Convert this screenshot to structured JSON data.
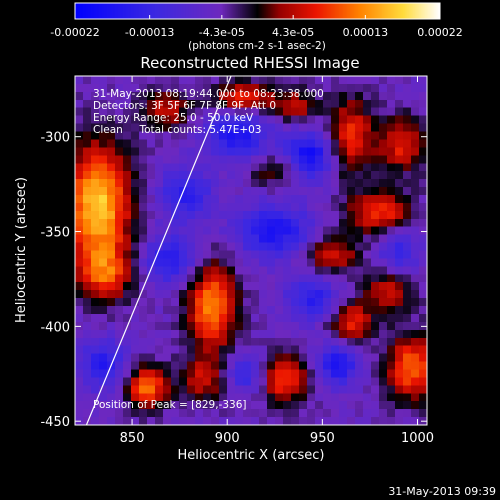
{
  "chart_data": {
    "type": "heatmap",
    "title": "Reconstructed RHESSI Image",
    "xlabel": "Heliocentric X (arcsec)",
    "ylabel": "Heliocentric Y (arcsec)",
    "xlim": [
      820,
      1005
    ],
    "ylim": [
      -452,
      -268
    ],
    "x_ticks": [
      850,
      900,
      950,
      1000
    ],
    "y_ticks": [
      -300,
      -350,
      -400,
      -450
    ],
    "colorbar": {
      "ticks": [
        "-0.00022",
        "-0.00013",
        "-4.3e-05",
        "4.3e-05",
        "0.00013",
        "0.00022"
      ],
      "tick_values": [
        -0.00022,
        -0.00013,
        -4.3e-05,
        4.3e-05,
        0.00013,
        0.00022
      ],
      "range": [
        -0.00022,
        0.00022
      ],
      "unit_label": "(photons cm-2 s-1 asec-2)"
    },
    "annotations": [
      "31-May-2013 08:19:44.000 to 08:23:38.000",
      "Detectors: 3F 5F 6F 7F 8F 9F, Att 0",
      "Energy Range: 25.0 - 50.0 keV",
      "Clean     Total counts: 5.47E+03"
    ],
    "peak_label": "Position of Peak = [829,-336]",
    "limb_line": [
      [
        826,
        -452
      ],
      [
        902,
        -268
      ]
    ],
    "hotspots": [
      {
        "x": 832,
        "y": -336,
        "amp": 0.00022,
        "sx": 12,
        "sy": 22
      },
      {
        "x": 836,
        "y": -372,
        "amp": 0.00012,
        "sx": 10,
        "sy": 10
      },
      {
        "x": 868,
        "y": -286,
        "amp": 0.0001,
        "sx": 9,
        "sy": 7
      },
      {
        "x": 908,
        "y": -280,
        "amp": 0.00014,
        "sx": 12,
        "sy": 6
      },
      {
        "x": 937,
        "y": -284,
        "amp": 9e-05,
        "sx": 8,
        "sy": 6
      },
      {
        "x": 965,
        "y": -300,
        "amp": 0.00013,
        "sx": 8,
        "sy": 14
      },
      {
        "x": 992,
        "y": -304,
        "amp": 0.00012,
        "sx": 9,
        "sy": 10
      },
      {
        "x": 980,
        "y": -340,
        "amp": 0.00013,
        "sx": 12,
        "sy": 8
      },
      {
        "x": 955,
        "y": -362,
        "amp": 0.00011,
        "sx": 10,
        "sy": 7
      },
      {
        "x": 985,
        "y": -382,
        "amp": 0.0001,
        "sx": 9,
        "sy": 8
      },
      {
        "x": 965,
        "y": -398,
        "amp": 0.00012,
        "sx": 8,
        "sy": 8
      },
      {
        "x": 997,
        "y": -422,
        "amp": 0.00016,
        "sx": 9,
        "sy": 12
      },
      {
        "x": 930,
        "y": -428,
        "amp": 0.00014,
        "sx": 9,
        "sy": 9
      },
      {
        "x": 892,
        "y": -390,
        "amp": 0.00018,
        "sx": 9,
        "sy": 16
      },
      {
        "x": 888,
        "y": -428,
        "amp": 0.0001,
        "sx": 8,
        "sy": 8
      },
      {
        "x": 858,
        "y": -432,
        "amp": 0.00016,
        "sx": 8,
        "sy": 8
      },
      {
        "x": 925,
        "y": -318,
        "amp": 7e-05,
        "sx": 10,
        "sy": 6
      }
    ],
    "coldspots": [
      {
        "x": 905,
        "y": -298,
        "amp": -0.00012,
        "sx": 12,
        "sy": 10
      },
      {
        "x": 943,
        "y": -310,
        "amp": -0.00014,
        "sx": 9,
        "sy": 9
      },
      {
        "x": 878,
        "y": -330,
        "amp": -0.0001,
        "sx": 10,
        "sy": 10
      },
      {
        "x": 925,
        "y": -350,
        "amp": -0.00012,
        "sx": 14,
        "sy": 10
      },
      {
        "x": 870,
        "y": -365,
        "amp": -0.00011,
        "sx": 10,
        "sy": 9
      },
      {
        "x": 945,
        "y": -386,
        "amp": -0.0001,
        "sx": 10,
        "sy": 8
      },
      {
        "x": 958,
        "y": -420,
        "amp": -0.00012,
        "sx": 8,
        "sy": 8
      },
      {
        "x": 910,
        "y": -425,
        "amp": -9e-05,
        "sx": 8,
        "sy": 7
      },
      {
        "x": 835,
        "y": -420,
        "amp": -0.00011,
        "sx": 9,
        "sy": 9
      },
      {
        "x": 990,
        "y": -360,
        "amp": -8e-05,
        "sx": 8,
        "sy": 8
      }
    ]
  },
  "footer": {
    "timestamp": "31-May-2013 09:39"
  }
}
